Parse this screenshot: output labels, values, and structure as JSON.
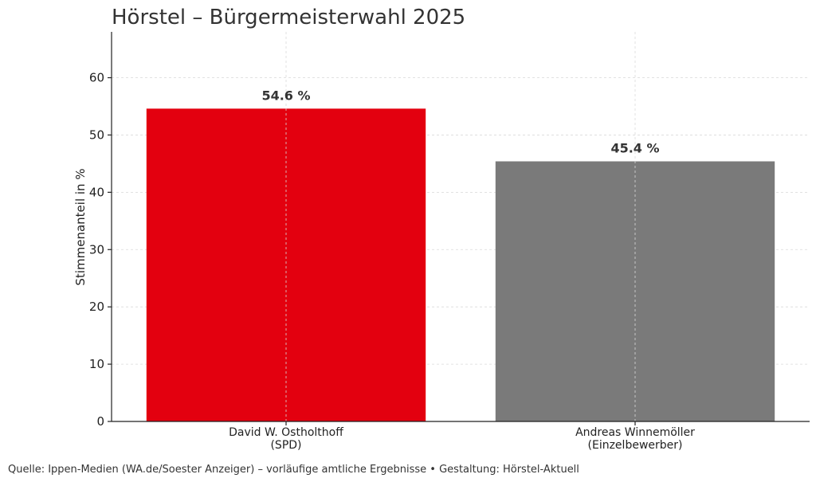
{
  "chart_data": {
    "type": "bar",
    "title": "Hörstel – Bürgermeisterwahl 2025",
    "ylabel": "Stimmenanteil in %",
    "xlabel": "",
    "ylim": [
      0,
      68
    ],
    "yticks": [
      0,
      10,
      20,
      30,
      40,
      50,
      60
    ],
    "grid": true,
    "categories": [
      [
        "David W. Ostholthoff",
        "(SPD)"
      ],
      [
        "Andreas Winnemöller",
        "(Einzelbewerber)"
      ]
    ],
    "values": [
      54.6,
      45.4
    ],
    "value_labels": [
      "54.6 %",
      "45.4 %"
    ],
    "colors": [
      "#e3000f",
      "#7a7a7a"
    ]
  },
  "footer": {
    "source": "Quelle: Ippen-Medien (WA.de/Soester Anzeiger) – vorläufige amtliche Ergebnisse • Gestaltung: Hörstel-Aktuell"
  }
}
